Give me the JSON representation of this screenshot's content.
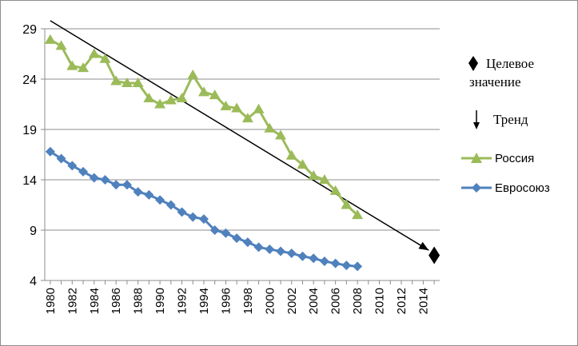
{
  "chart_data": {
    "type": "line",
    "title": "",
    "xlabel": "",
    "ylabel": "",
    "x_categories": [
      "1980",
      "1981",
      "1982",
      "1983",
      "1984",
      "1985",
      "1986",
      "1987",
      "1988",
      "1989",
      "1990",
      "1991",
      "1992",
      "1993",
      "1994",
      "1995",
      "1996",
      "1997",
      "1998",
      "1999",
      "2000",
      "2001",
      "2002",
      "2003",
      "2004",
      "2005",
      "2006",
      "2007",
      "2008",
      "2009",
      "2010",
      "2011",
      "2012",
      "2013",
      "2014",
      "2015"
    ],
    "x_tick_labels": [
      "1980",
      "1982",
      "1984",
      "1986",
      "1988",
      "1990",
      "1992",
      "1994",
      "1996",
      "1998",
      "2000",
      "2002",
      "2004",
      "2006",
      "2008",
      "2010",
      "2012",
      "2014"
    ],
    "y_ticks": [
      "4",
      "9",
      "14",
      "19",
      "24",
      "29"
    ],
    "ylim": [
      4,
      29
    ],
    "grid": "horizontal",
    "legend_position": "right",
    "series": [
      {
        "name": "Россия",
        "color": "#9bbb59",
        "marker": "triangle",
        "x": [
          1980,
          1981,
          1982,
          1983,
          1984,
          1985,
          1986,
          1987,
          1988,
          1989,
          1990,
          1991,
          1992,
          1993,
          1994,
          1995,
          1996,
          1997,
          1998,
          1999,
          2000,
          2001,
          2002,
          2003,
          2004,
          2005,
          2006,
          2007,
          2008
        ],
        "values": [
          27.9,
          27.3,
          25.3,
          25.1,
          26.5,
          26.0,
          23.8,
          23.6,
          23.6,
          22.1,
          21.5,
          21.9,
          22.1,
          24.4,
          22.7,
          22.4,
          21.3,
          21.1,
          20.1,
          21.0,
          19.1,
          18.4,
          16.4,
          15.5,
          14.4,
          14.0,
          12.9,
          11.5,
          10.5
        ]
      },
      {
        "name": "Евросоюз",
        "color": "#4f81bd",
        "marker": "diamond",
        "x": [
          1980,
          1981,
          1982,
          1983,
          1984,
          1985,
          1986,
          1987,
          1988,
          1989,
          1990,
          1991,
          1992,
          1993,
          1994,
          1995,
          1996,
          1997,
          1998,
          1999,
          2000,
          2001,
          2002,
          2003,
          2004,
          2005,
          2006,
          2007,
          2008
        ],
        "values": [
          16.8,
          16.1,
          15.4,
          14.8,
          14.2,
          14.0,
          13.5,
          13.5,
          12.8,
          12.5,
          12.0,
          11.5,
          10.8,
          10.3,
          10.1,
          9.0,
          8.7,
          8.2,
          7.8,
          7.3,
          7.1,
          6.9,
          6.7,
          6.4,
          6.2,
          5.9,
          5.7,
          5.5,
          5.4
        ]
      }
    ],
    "trend": {
      "name": "Тренд",
      "color": "#000000",
      "x": [
        1980,
        2014.5
      ],
      "values": [
        29.8,
        7.0
      ]
    },
    "target": {
      "name": "Целевое значение",
      "name_lines": [
        "Целевое",
        "значение"
      ],
      "color": "#000000",
      "marker": "diamond",
      "x": 2015,
      "value": 6.5
    }
  }
}
